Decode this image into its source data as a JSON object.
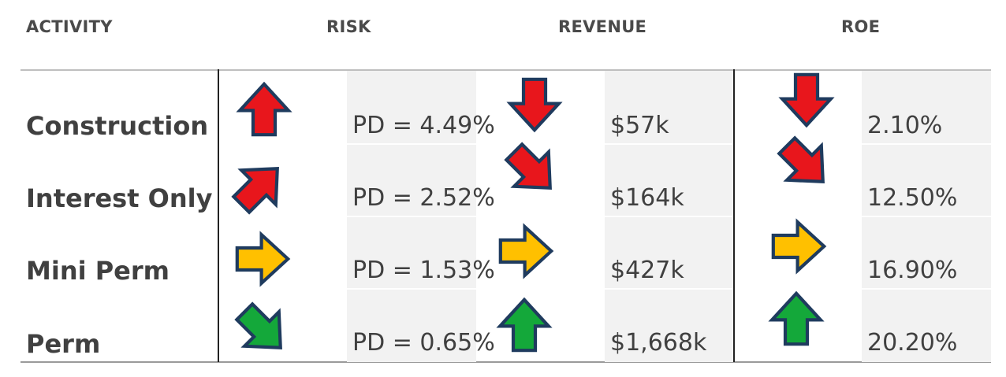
{
  "headers": {
    "activity": "ACTIVITY",
    "risk": "RISK",
    "revenue": "REVENUE",
    "roe": "ROE"
  },
  "colors": {
    "up": "#e8161c",
    "flat": "#ffc000",
    "good": "#14a83a",
    "outline": "#1f3b5e"
  },
  "rows": [
    {
      "activity": "Construction",
      "risk": "PD = 4.49%",
      "revenue": "$57k",
      "roe": "2.10%",
      "risk_icon": "arrow-up-red-icon",
      "revenue_icon": "arrow-down-red-icon",
      "roe_icon": "arrow-down-red-icon"
    },
    {
      "activity": "Interest Only",
      "risk": "PD = 2.52%",
      "revenue": "$164k",
      "roe": "12.50%",
      "risk_icon": "arrow-up-right-red-icon",
      "revenue_icon": "arrow-down-right-red-icon",
      "roe_icon": "arrow-down-right-red-icon"
    },
    {
      "activity": "Mini Perm",
      "risk": "PD = 1.53%",
      "revenue": "$427k",
      "roe": "16.90%",
      "risk_icon": "arrow-right-yellow-icon",
      "revenue_icon": "arrow-right-yellow-icon",
      "roe_icon": "arrow-right-yellow-icon"
    },
    {
      "activity": "Perm",
      "risk": "PD = 0.65%",
      "revenue": "$1,668k",
      "roe": "20.20%",
      "risk_icon": "arrow-down-right-green-icon",
      "revenue_icon": "arrow-up-green-icon",
      "roe_icon": "arrow-up-green-icon"
    }
  ]
}
